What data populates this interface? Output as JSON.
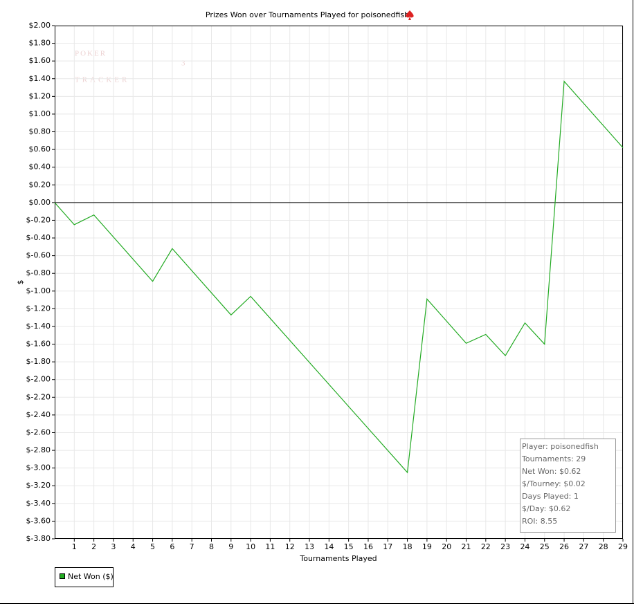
{
  "chart_data": {
    "type": "line",
    "title": "Prizes Won over Tournaments Played for poisonedfish",
    "watermark": [
      "POKER",
      "TRACKER",
      "3"
    ],
    "x_label": "Tournaments Played",
    "y_label": "$",
    "x": [
      0,
      1,
      2,
      5,
      6,
      9,
      10,
      18,
      19,
      21,
      22,
      23,
      24,
      25,
      26,
      29
    ],
    "series": [
      {
        "name": "Net Won ($)",
        "color": "#22aa22",
        "values": [
          0,
          -0.25,
          -0.14,
          -0.89,
          -0.52,
          -1.27,
          -1.06,
          -3.05,
          -1.09,
          -1.59,
          -1.49,
          -1.73,
          -1.36,
          -1.6,
          1.37,
          0.62
        ]
      }
    ],
    "xlim": [
      0,
      29
    ],
    "xticks": [
      1,
      2,
      3,
      4,
      5,
      6,
      7,
      8,
      9,
      10,
      11,
      12,
      13,
      14,
      15,
      16,
      17,
      18,
      19,
      20,
      21,
      22,
      23,
      24,
      25,
      26,
      27,
      28,
      29
    ],
    "ylim": [
      -3.8,
      2.0
    ],
    "yticks": [
      {
        "value": 2.0,
        "label": "$2.00"
      },
      {
        "value": 1.8,
        "label": "$1.80"
      },
      {
        "value": 1.6,
        "label": "$1.60"
      },
      {
        "value": 1.4,
        "label": "$1.40"
      },
      {
        "value": 1.2,
        "label": "$1.20"
      },
      {
        "value": 1.0,
        "label": "$1.00"
      },
      {
        "value": 0.8,
        "label": "$0.80"
      },
      {
        "value": 0.6,
        "label": "$0.60"
      },
      {
        "value": 0.4,
        "label": "$0.40"
      },
      {
        "value": 0.2,
        "label": "$0.20"
      },
      {
        "value": 0,
        "label": "$0.00"
      },
      {
        "value": -0.2,
        "label": "$-0.20"
      },
      {
        "value": -0.4,
        "label": "$-0.40"
      },
      {
        "value": -0.6,
        "label": "$-0.60"
      },
      {
        "value": -0.8,
        "label": "$-0.80"
      },
      {
        "value": -1.0,
        "label": "$-1.00"
      },
      {
        "value": -1.2,
        "label": "$-1.20"
      },
      {
        "value": -1.4,
        "label": "$-1.40"
      },
      {
        "value": -1.6,
        "label": "$-1.60"
      },
      {
        "value": -1.8,
        "label": "$-1.80"
      },
      {
        "value": -2.0,
        "label": "$-2.00"
      },
      {
        "value": -2.2,
        "label": "$-2.20"
      },
      {
        "value": -2.4,
        "label": "$-2.40"
      },
      {
        "value": -2.6,
        "label": "$-2.60"
      },
      {
        "value": -2.8,
        "label": "$-2.80"
      },
      {
        "value": -3.0,
        "label": "$-3.00"
      },
      {
        "value": -3.2,
        "label": "$-3.20"
      },
      {
        "value": -3.4,
        "label": "$-3.40"
      },
      {
        "value": -3.6,
        "label": "$-3.60"
      },
      {
        "value": -3.8,
        "label": "$-3.80"
      }
    ],
    "grid": true,
    "zero_line": 0,
    "stats": [
      "Player: poisonedfish",
      "Tournaments: 29",
      "Net Won: $0.62",
      "$/Tourney: $0.02",
      "Days Played: 1",
      "$/Day: $0.62",
      "ROI: 8.55"
    ]
  }
}
